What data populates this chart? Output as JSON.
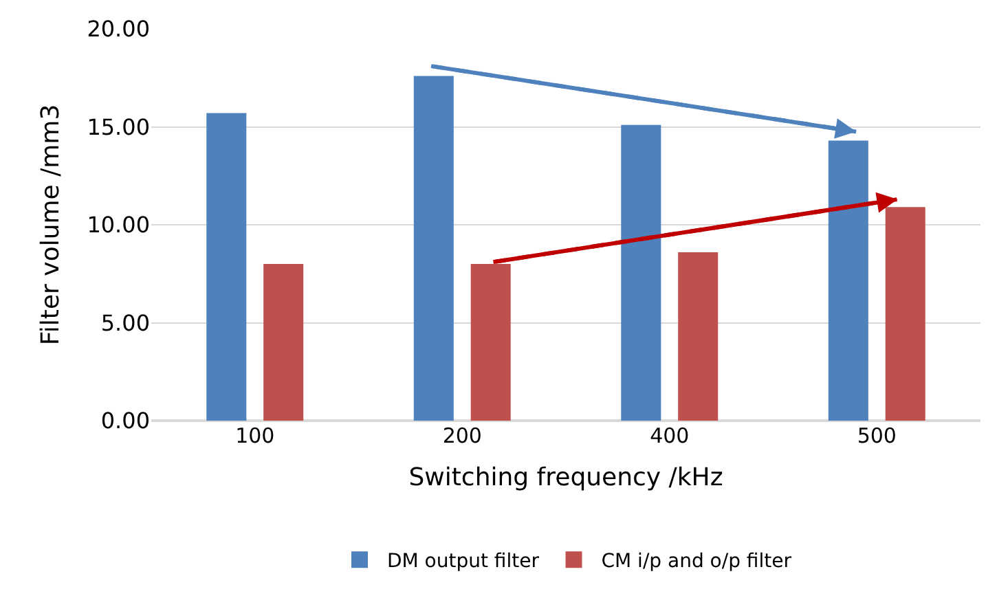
{
  "chart_data": {
    "type": "bar",
    "xlabel": "Switching frequency /kHz",
    "ylabel": "Filter volume /mm3",
    "categories": [
      "100",
      "200",
      "400",
      "500"
    ],
    "series": [
      {
        "name": "DM output filter",
        "color": "#4f81bd",
        "values": [
          15.7,
          17.6,
          15.1,
          14.3
        ]
      },
      {
        "name": "CM i/p and o/p filter",
        "color": "#c0504d",
        "values": [
          8.0,
          8.0,
          8.6,
          10.9
        ]
      }
    ],
    "ylim": [
      0,
      20
    ],
    "yticks": [
      {
        "value": 0,
        "label": "0.00"
      },
      {
        "value": 5,
        "label": "5.00"
      },
      {
        "value": 10,
        "label": "10.00"
      },
      {
        "value": 15,
        "label": "15.00"
      },
      {
        "value": 20,
        "label": "20.00"
      }
    ],
    "grid": "y",
    "legend": "bottom"
  }
}
